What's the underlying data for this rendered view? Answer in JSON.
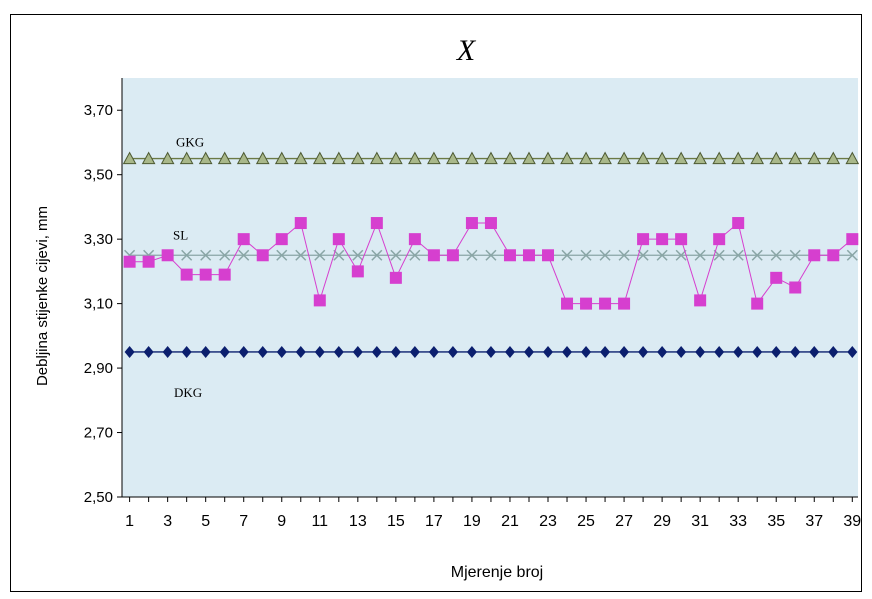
{
  "chart_data": {
    "type": "line",
    "title": "X",
    "xlabel": "Mjerenje broj",
    "ylabel": "Debljina stijenke cijevi, mm",
    "ylim": [
      2.5,
      3.8
    ],
    "yticks": [
      "2,50",
      "2,70",
      "2,90",
      "3,10",
      "3,30",
      "3,50",
      "3,70"
    ],
    "ytick_values": [
      2.5,
      2.7,
      2.9,
      3.1,
      3.3,
      3.5,
      3.7
    ],
    "xticks": [
      "1",
      "3",
      "5",
      "7",
      "9",
      "11",
      "13",
      "15",
      "17",
      "19",
      "21",
      "23",
      "25",
      "27",
      "29",
      "31",
      "33",
      "35",
      "37",
      "39"
    ],
    "xtick_values": [
      1,
      3,
      5,
      7,
      9,
      11,
      13,
      15,
      17,
      19,
      21,
      23,
      25,
      27,
      29,
      31,
      33,
      35,
      37,
      39
    ],
    "x": [
      1,
      2,
      3,
      4,
      5,
      6,
      7,
      8,
      9,
      10,
      11,
      12,
      13,
      14,
      15,
      16,
      17,
      18,
      19,
      20,
      21,
      22,
      23,
      24,
      25,
      26,
      27,
      28,
      29,
      30,
      31,
      32,
      33,
      34,
      35,
      36,
      37,
      38,
      39
    ],
    "series": [
      {
        "name": "GKG",
        "color": "#8e9e6a",
        "marker": "triangle",
        "constant": 3.55
      },
      {
        "name": "SL",
        "color": "#8aa6a6",
        "marker": "cross",
        "constant": 3.25
      },
      {
        "name": "DKG",
        "color": "#0b1f6e",
        "marker": "diamond",
        "constant": 2.95
      },
      {
        "name": "",
        "color": "#d63fcf",
        "marker": "square",
        "values": [
          3.23,
          3.23,
          3.25,
          3.19,
          3.19,
          3.19,
          3.3,
          3.25,
          3.3,
          3.35,
          3.11,
          3.3,
          3.2,
          3.35,
          3.18,
          3.3,
          3.25,
          3.25,
          3.35,
          3.35,
          3.25,
          3.25,
          3.25,
          3.1,
          3.1,
          3.1,
          3.1,
          3.3,
          3.3,
          3.3,
          3.11,
          3.3,
          3.35,
          3.1,
          3.18,
          3.15,
          3.25,
          3.25,
          3.3
        ]
      }
    ],
    "grid": false,
    "plot_background": "#dbebf3",
    "legend": "inline-labels"
  }
}
